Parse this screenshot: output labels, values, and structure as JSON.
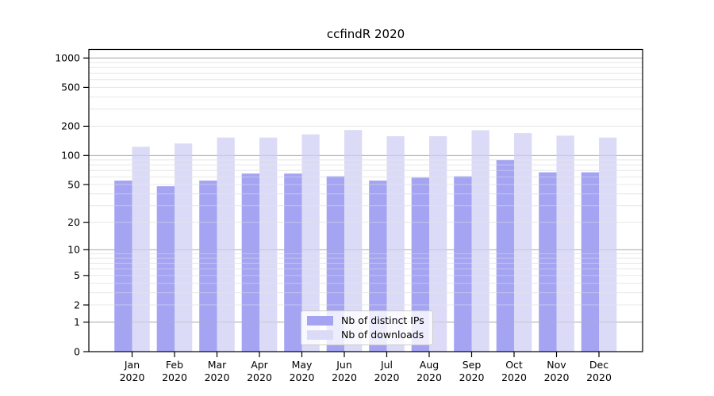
{
  "chart_data": {
    "type": "bar",
    "title": "ccfindR 2020",
    "categories": [
      "Jan",
      "Feb",
      "Mar",
      "Apr",
      "May",
      "Jun",
      "Jul",
      "Aug",
      "Sep",
      "Oct",
      "Nov",
      "Dec"
    ],
    "year_label": "2020",
    "series": [
      {
        "name": "Nb of distinct IPs",
        "color": "#a4a4f2",
        "values": [
          55,
          48,
          55,
          65,
          65,
          61,
          55,
          59,
          61,
          90,
          67,
          67
        ]
      },
      {
        "name": "Nb of downloads",
        "color": "#dbdbf7",
        "values": [
          123,
          133,
          153,
          153,
          165,
          183,
          158,
          158,
          182,
          170,
          160,
          153
        ]
      }
    ],
    "y_scale": "log10(value+1)",
    "y_ticks": [
      1000,
      500,
      200,
      100,
      50,
      20,
      10,
      5,
      2,
      1,
      0
    ],
    "ylim": [
      0,
      1220
    ],
    "xlabel": "",
    "ylabel": "",
    "grid": "on",
    "grid_major_color": "#b0b0b0",
    "grid_minor_color": "#e9e9e9",
    "frame_color": "#000000",
    "legend_position": "lower center"
  }
}
